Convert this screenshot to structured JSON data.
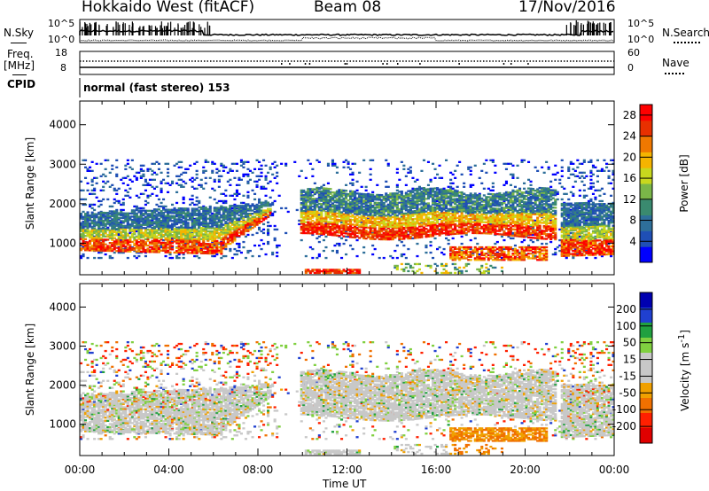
{
  "header": {
    "station": "Hokkaido West (fitACF)",
    "beam": "Beam 08",
    "date": "17/Nov/2016"
  },
  "side_labels": {
    "nsky": "N.Sky",
    "freq": "Freq.",
    "mhz": "[MHz]",
    "cpid": "CPID",
    "nsearch": "N.Search",
    "nave": "Nave"
  },
  "cpid_text": "normal (fast stereo) 153",
  "top_ticks": {
    "noise_left": [
      "10^5",
      "10^0"
    ],
    "noise_right": [
      "10^5",
      "10^0"
    ],
    "freq_left": [
      "18",
      "8"
    ],
    "nave_right": [
      "60",
      "0"
    ]
  },
  "colors": {
    "power_scale": [
      "#0000ff",
      "#1f4fb5",
      "#2e6f9a",
      "#3a8a6f",
      "#7ab648",
      "#c8d81e",
      "#f5b400",
      "#f07800",
      "#e83000",
      "#ff0000"
    ],
    "velocity_scale": [
      "#0000b0",
      "#2040d0",
      "#20a040",
      "#80d040",
      "#c8c8c8",
      "#c8c8c8",
      "#f0a000",
      "#f07000",
      "#ff2000",
      "#e00000"
    ]
  },
  "chart_data": [
    {
      "type": "heatmap",
      "name": "power",
      "xlabel": "",
      "ylabel": "Slant Range [km]",
      "ylim": [
        200,
        4600
      ],
      "xlim": [
        "00:00",
        "24:00"
      ],
      "yticks": [
        "1000",
        "2000",
        "3000",
        "4000"
      ],
      "colorbar_label": "Power [dB]",
      "colorbar_ticks": [
        "4",
        "8",
        "12",
        "16",
        "20",
        "24",
        "28"
      ],
      "colorbar_range": [
        0,
        30
      ]
    },
    {
      "type": "heatmap",
      "name": "velocity",
      "xlabel": "Time UT",
      "ylabel": "Slant Range [km]",
      "ylim": [
        200,
        4600
      ],
      "xlim": [
        "00:00",
        "24:00"
      ],
      "yticks": [
        "1000",
        "2000",
        "3000",
        "4000"
      ],
      "xticks": [
        "00:00",
        "04:00",
        "08:00",
        "12:00",
        "16:00",
        "20:00",
        "00:00"
      ],
      "colorbar_label": "Velocity [m s^-1]",
      "colorbar_ticks": [
        "200",
        "100",
        "50",
        "15",
        "-15",
        "-50",
        "-100",
        "-200"
      ]
    }
  ]
}
